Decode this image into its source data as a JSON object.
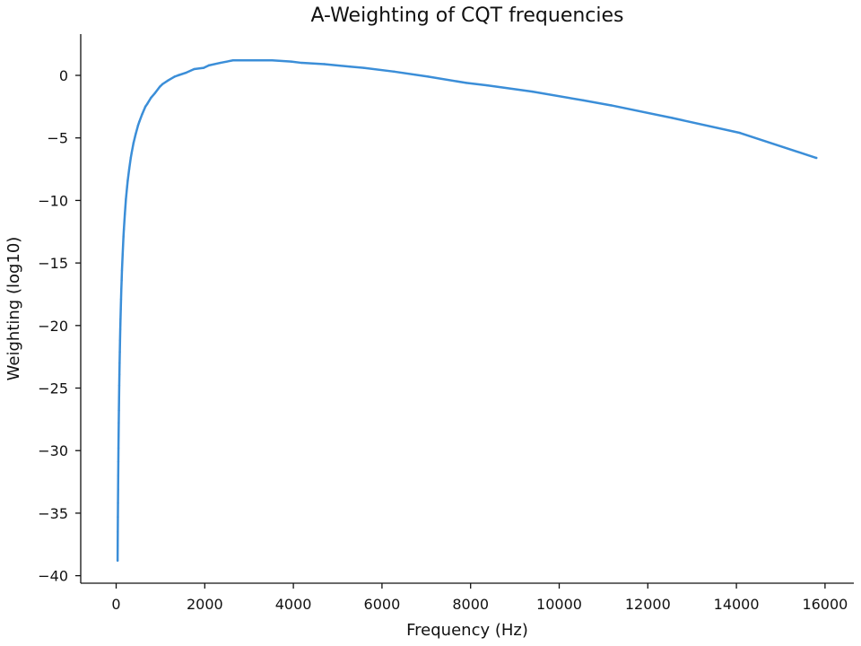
{
  "chart_data": {
    "type": "line",
    "title": "A-Weighting of CQT frequencies",
    "xlabel": "Frequency (Hz)",
    "ylabel": "Weighting (log10)",
    "xlim": [
      -800,
      16650
    ],
    "ylim": [
      -40.6,
      3.3
    ],
    "grid": false,
    "legend": "none",
    "line_color": "#3b8ed8",
    "x_ticks": [
      0,
      2000,
      4000,
      6000,
      8000,
      10000,
      12000,
      14000,
      16000
    ],
    "x_tick_labels": [
      "0",
      "2000",
      "4000",
      "6000",
      "8000",
      "10000",
      "12000",
      "14000",
      "16000"
    ],
    "y_ticks": [
      0,
      -5,
      -10,
      -15,
      -20,
      -25,
      -30,
      -35,
      -40
    ],
    "y_tick_labels": [
      "0",
      "−5",
      "−10",
      "−15",
      "−20",
      "−25",
      "−30",
      "−35",
      "−40"
    ],
    "series": [
      {
        "x": [
          32.7,
          34.6,
          36.7,
          38.9,
          41.2,
          43.7,
          46.2,
          49.0,
          51.9,
          55.0,
          58.3,
          61.7,
          65.4,
          69.3,
          73.4,
          77.8,
          82.4,
          87.3,
          92.5,
          98.0,
          103.8,
          110.0,
          116.5,
          123.5,
          130.8,
          146.8,
          164.8,
          174.6,
          196.0,
          220.0,
          246.9,
          261.6,
          293.7,
          329.6,
          349.2,
          392.0,
          440.0,
          493.9,
          523.3,
          587.3,
          659.3,
          698.5,
          784.0,
          880.0,
          987.8,
          1046.5,
          1174.7,
          1318.5,
          1396.9,
          1568.0,
          1760.0,
          1975.5,
          2093.0,
          2349.3,
          2637.0,
          2793.8,
          3136.0,
          3520.0,
          3951.1,
          4186.0,
          4698.6,
          5274.0,
          5587.7,
          6271.9,
          7040.0,
          7902.1,
          8372.0,
          9397.3,
          10548.1,
          11175.3,
          12543.9,
          14080.0,
          15804.3
        ],
        "y": [
          -38.8,
          -37.6,
          -36.5,
          -35.3,
          -34.2,
          -33.1,
          -32.0,
          -30.9,
          -29.8,
          -28.8,
          -27.8,
          -26.8,
          -25.8,
          -24.8,
          -23.9,
          -23.0,
          -22.1,
          -21.2,
          -20.3,
          -19.5,
          -18.7,
          -17.9,
          -17.1,
          -16.4,
          -15.6,
          -14.3,
          -12.9,
          -12.3,
          -11.1,
          -9.9,
          -8.9,
          -8.4,
          -7.5,
          -6.6,
          -6.2,
          -5.4,
          -4.7,
          -4.0,
          -3.7,
          -3.1,
          -2.5,
          -2.3,
          -1.8,
          -1.4,
          -0.9,
          -0.7,
          -0.4,
          -0.1,
          0.0,
          0.2,
          0.5,
          0.6,
          0.8,
          1.0,
          1.2,
          1.2,
          1.2,
          1.2,
          1.1,
          1.0,
          0.9,
          0.7,
          0.6,
          0.3,
          -0.1,
          -0.6,
          -0.8,
          -1.3,
          -2.0,
          -2.4,
          -3.4,
          -4.6,
          -6.6
        ]
      }
    ]
  }
}
